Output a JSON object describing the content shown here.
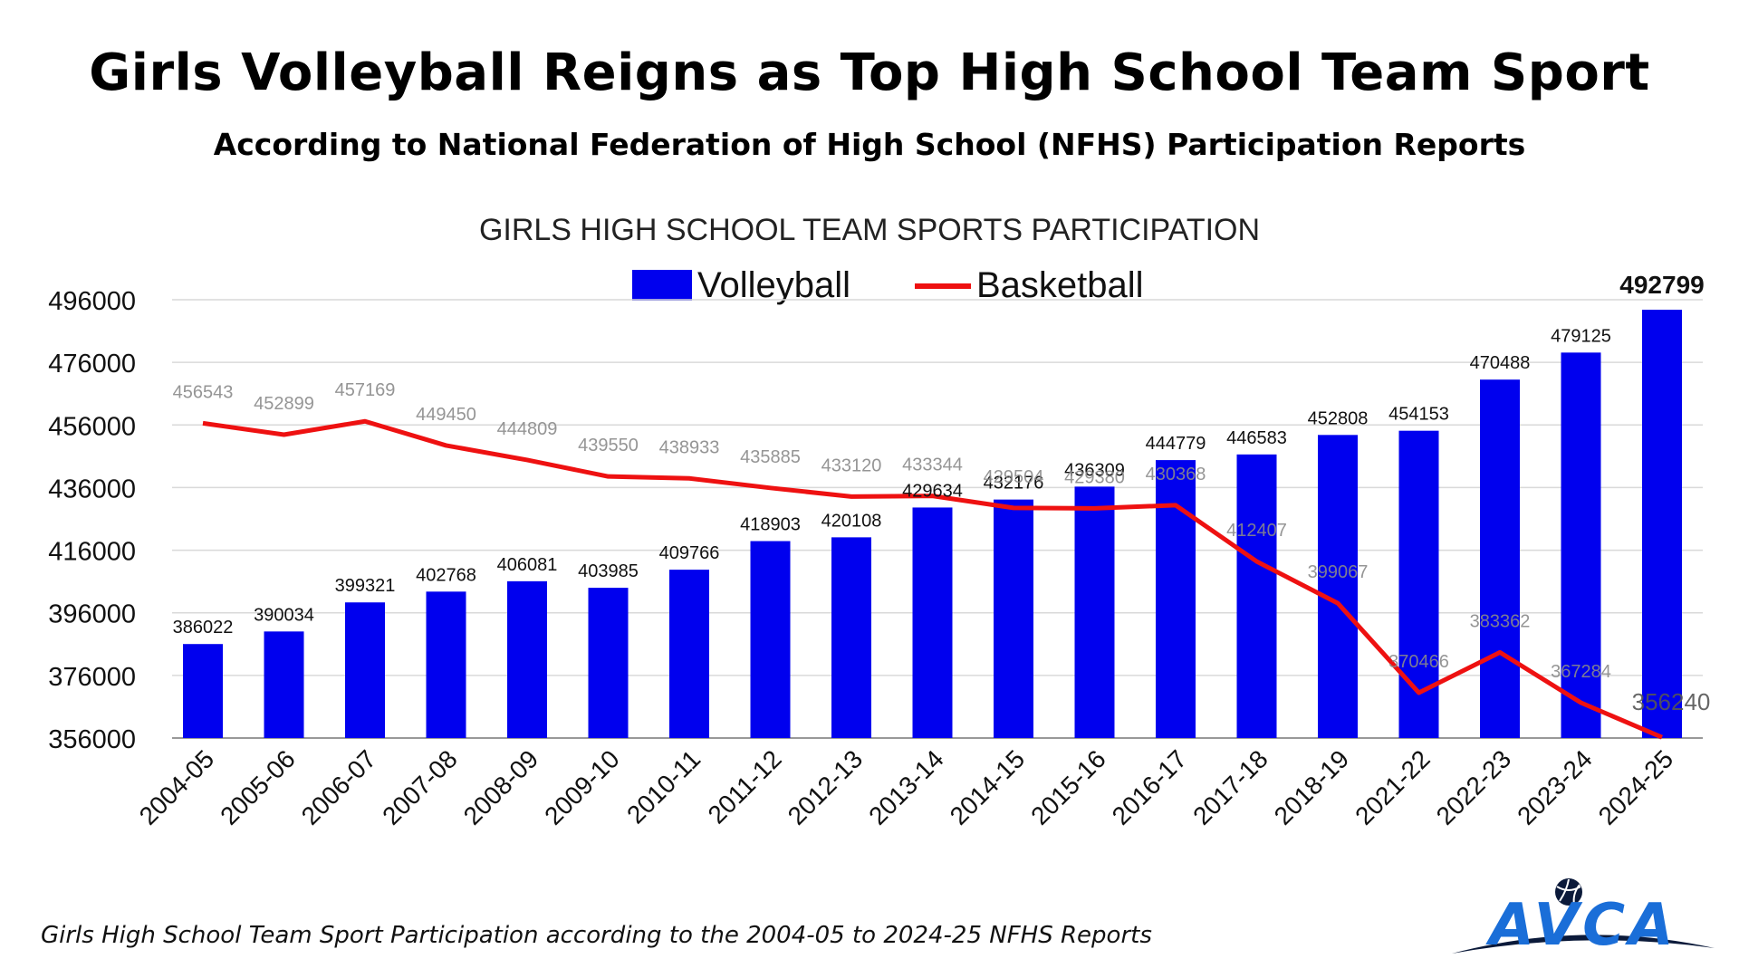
{
  "page": {
    "title": "Girls Volleyball Reigns as Top High School Team Sport",
    "subtitle": "According to National Federation of High School (NFHS) Participation Reports",
    "footer": "Girls High School Team Sport Participation according to the 2004-05 to 2024-25 NFHS Reports",
    "logo_text": "AVCA",
    "logo_icon": "volleyball-icon"
  },
  "chart_data": {
    "type": "bar",
    "title": "GIRLS HIGH SCHOOL TEAM SPORTS PARTICIPATION",
    "xlabel": "",
    "ylabel": "",
    "ylim": [
      356000,
      500000
    ],
    "yticks": [
      356000,
      376000,
      396000,
      416000,
      436000,
      456000,
      476000,
      496000
    ],
    "grid": true,
    "legend_position": "top",
    "categories": [
      "2004-05",
      "2005-06",
      "2006-07",
      "2007-08",
      "2008-09",
      "2009-10",
      "2010-11",
      "2011-12",
      "2012-13",
      "2013-14",
      "2014-15",
      "2015-16",
      "2016-17",
      "2017-18",
      "2018-19",
      "2021-22",
      "2022-23",
      "2023-24",
      "2024-25"
    ],
    "series": [
      {
        "name": "Volleyball",
        "type": "bar",
        "color": "#0000EE",
        "values": [
          386022,
          390034,
          399321,
          402768,
          406081,
          403985,
          409766,
          418903,
          420108,
          429634,
          432176,
          436309,
          444779,
          446583,
          452808,
          454153,
          470488,
          479125,
          492799
        ]
      },
      {
        "name": "Basketball",
        "type": "line",
        "color": "#EE1111",
        "values": [
          456543,
          452899,
          457169,
          449450,
          444809,
          439550,
          438933,
          435885,
          433120,
          433344,
          429504,
          429380,
          430368,
          412407,
          399067,
          370466,
          383362,
          367284,
          356240
        ]
      }
    ]
  }
}
